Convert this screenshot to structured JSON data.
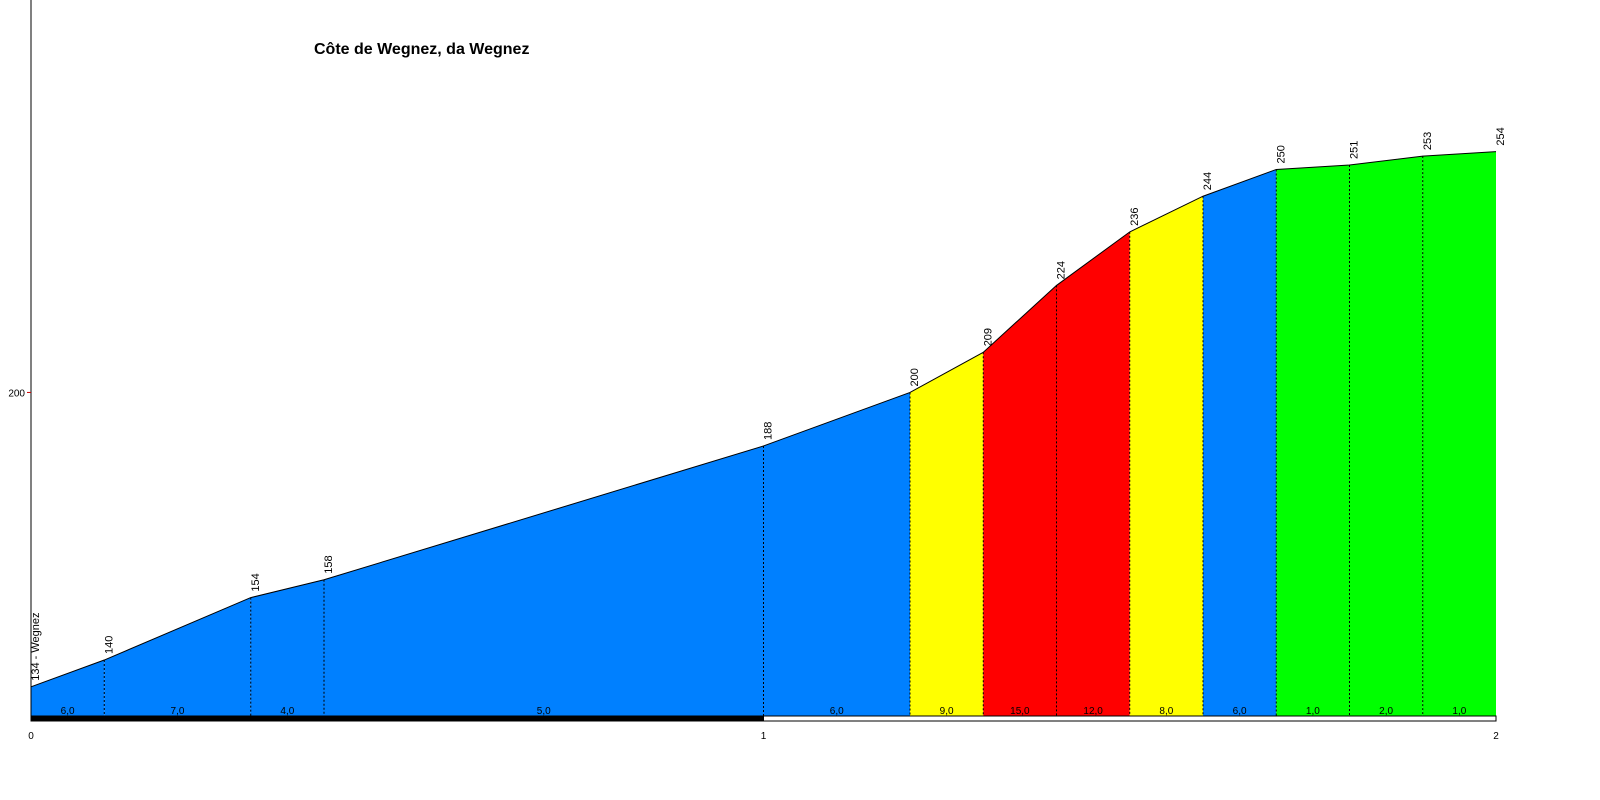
{
  "chart_data": {
    "type": "area",
    "title": "Côte de Wegnez, da Wegnez",
    "x": [
      0,
      0.1,
      0.3,
      0.4,
      1.0,
      1.2,
      1.3,
      1.4,
      1.5,
      1.6,
      1.7,
      1.8,
      1.9,
      2.0
    ],
    "series": [
      {
        "values": [
          134,
          140,
          154,
          158,
          188,
          200,
          209,
          224,
          236,
          244,
          250,
          251,
          253,
          254
        ],
        "value_labels": [
          "134 - Wegnez",
          "140",
          "154",
          "158",
          "188",
          "200",
          "209",
          "224",
          "236",
          "244",
          "250",
          "251",
          "253",
          "254"
        ]
      }
    ],
    "gradients": [
      6,
      7,
      4,
      5,
      6,
      9,
      15,
      12,
      8,
      6,
      1,
      2,
      1
    ],
    "gradient_labels": [
      "6,0",
      "7,0",
      "4,0",
      "5,0",
      "6,0",
      "9,0",
      "15,0",
      "12,0",
      "8,0",
      "6,0",
      "1,0",
      "2,0",
      "1,0"
    ],
    "segment_colors": [
      "#0080ff",
      "#0080ff",
      "#0080ff",
      "#0080ff",
      "#0080ff",
      "#ffff00",
      "#ff0000",
      "#ff0000",
      "#ffff00",
      "#0080ff",
      "#00ff00",
      "#00ff00",
      "#00ff00"
    ],
    "xlim": [
      0,
      2
    ],
    "xticks": [
      0,
      1,
      2
    ],
    "ylim": [
      127,
      288
    ],
    "yticks": [
      200
    ]
  }
}
